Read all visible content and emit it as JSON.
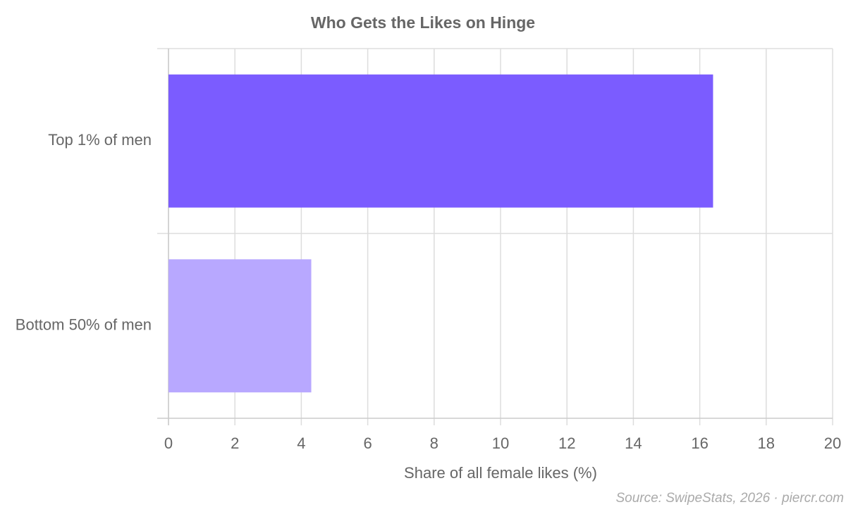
{
  "chart_data": {
    "type": "bar",
    "orientation": "horizontal",
    "title": "Who Gets the Likes on Hinge",
    "categories": [
      "Top 1% of men",
      "Bottom 50% of men"
    ],
    "values": [
      16.4,
      4.3
    ],
    "colors": [
      "#7b5cff",
      "#b8a8ff"
    ],
    "xlabel": "Share of all female likes (%)",
    "xlim": [
      0,
      20
    ],
    "xticks": [
      0,
      2,
      4,
      6,
      8,
      10,
      12,
      14,
      16,
      18,
      20
    ],
    "grid": true,
    "source": "Source: SwipeStats, 2026 · piercr.com"
  }
}
